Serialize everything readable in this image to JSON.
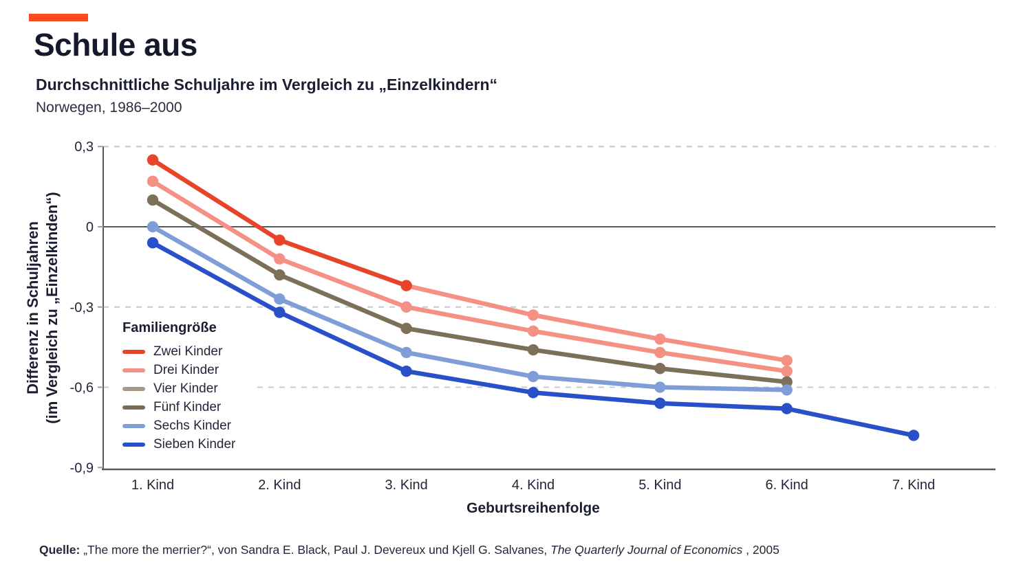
{
  "page": {
    "title": "Schule aus",
    "subtitle": "Durchschnittliche Schuljahre im Vergleich zu „Einzelkindern“",
    "period": "Norwegen, 1986–2000",
    "accent_color": "#fb4b1c"
  },
  "legend": {
    "title": "Familiengröße",
    "items": [
      {
        "label": "Zwei Kinder",
        "color": "#e84429"
      },
      {
        "label": "Drei Kinder",
        "color": "#f59084"
      },
      {
        "label": "Vier Kinder",
        "color": "#a49b87"
      },
      {
        "label": "Fünf Kinder",
        "color": "#7a6c57"
      },
      {
        "label": "Sechs Kinder",
        "color": "#7f9ed8"
      },
      {
        "label": "Sieben Kinder",
        "color": "#2950c8"
      }
    ]
  },
  "source": {
    "label": "Quelle:",
    "text_before_journal": "„The more the merrier?“, von Sandra E. Black, Paul J. Devereux und Kjell G. Salvanes, ",
    "journal": "The Quarterly Journal of Economics",
    "text_after_journal": ", 2005"
  },
  "chart_data": {
    "type": "line",
    "title": "Schule aus",
    "subtitle": "Durchschnittliche Schuljahre im Vergleich zu „Einzelkindern“",
    "region_period": "Norwegen, 1986–2000",
    "x_axis_label": "Geburtsreihenfolge",
    "y_axis_label_line1": "Differenz in Schuljahren",
    "y_axis_label_line2": "(im Vergleich zu „Einzelkinden“)",
    "x_categories": [
      "1. Kind",
      "2. Kind",
      "3. Kind",
      "4. Kind",
      "5. Kind",
      "6. Kind",
      "7. Kind"
    ],
    "y_tick_labels": [
      "0,3",
      "0",
      "-0,3",
      "-0,6",
      "-0,9"
    ],
    "y_tick_values": [
      0.3,
      0,
      -0.3,
      -0.6,
      -0.9
    ],
    "ylim": [
      -0.9,
      0.3
    ],
    "grid_dashed_values": [
      0.3,
      -0.3,
      -0.6
    ],
    "zero_line_value": 0,
    "legend_title": "Familiengröße",
    "lines": [
      {
        "id": "line-salmon-upper",
        "color": "#f59084",
        "x": [
          3,
          4,
          5,
          6
        ],
        "y": [
          -0.22,
          -0.33,
          -0.42,
          -0.5
        ]
      },
      {
        "id": "line-salmon-lower",
        "color": "#f59084",
        "x": [
          1,
          2,
          3,
          4,
          5,
          6
        ],
        "y": [
          0.17,
          -0.12,
          -0.3,
          -0.39,
          -0.47,
          -0.54
        ]
      },
      {
        "id": "line-brown",
        "color": "#7d7059",
        "x": [
          1,
          2,
          3,
          4,
          5,
          6
        ],
        "y": [
          0.1,
          -0.18,
          -0.38,
          -0.46,
          -0.53,
          -0.58
        ]
      },
      {
        "id": "line-lightblue",
        "color": "#7f9ed8",
        "x": [
          1,
          2,
          3,
          4,
          5,
          6
        ],
        "y": [
          0.0,
          -0.27,
          -0.47,
          -0.56,
          -0.6,
          -0.61
        ]
      },
      {
        "id": "line-darkblue",
        "color": "#2950c8",
        "x": [
          1,
          2,
          3,
          4,
          5,
          6,
          7
        ],
        "y": [
          -0.06,
          -0.32,
          -0.54,
          -0.62,
          -0.66,
          -0.68,
          -0.78
        ]
      },
      {
        "id": "line-red",
        "color": "#e84429",
        "x": [
          1,
          2,
          3
        ],
        "y": [
          0.25,
          -0.05,
          -0.22
        ]
      }
    ]
  }
}
